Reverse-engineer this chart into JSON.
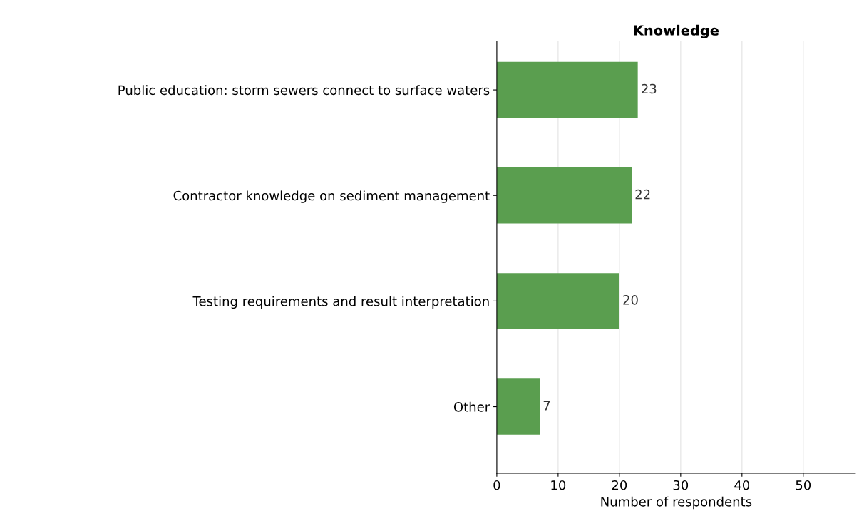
{
  "chart_data": {
    "type": "bar",
    "orientation": "horizontal",
    "title": "Knowledge",
    "xlabel": "Number of respondents",
    "categories": [
      "Public education: storm sewers connect to surface waters",
      "Contractor knowledge on sediment management",
      "Testing requirements and result interpretation",
      "Other"
    ],
    "values": [
      23,
      22,
      20,
      7
    ],
    "color": "#5a9e4f",
    "xlim": [
      0,
      58.5
    ],
    "xticks": [
      0,
      10,
      20,
      30,
      40,
      50
    ],
    "grid": "x",
    "data_labels": true
  }
}
